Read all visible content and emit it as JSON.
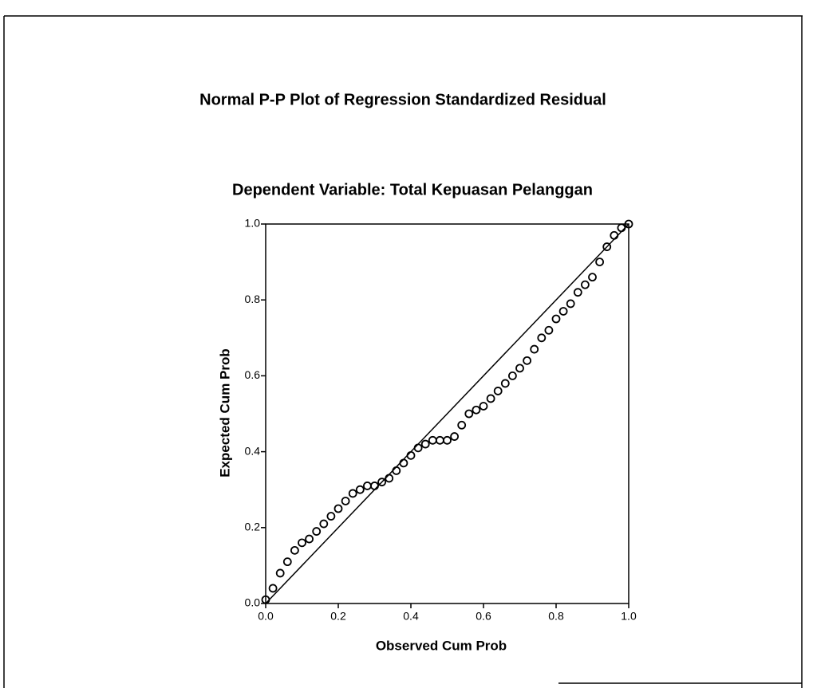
{
  "chart_data": {
    "type": "scatter",
    "title": "Normal P-P Plot of Regression Standardized Residual",
    "subtitle": "Dependent Variable: Total Kepuasan Pelanggan",
    "x_label": "Observed Cum Prob",
    "y_label": "Expected Cum Prob",
    "xlim": [
      0,
      1
    ],
    "ylim": [
      0,
      1
    ],
    "xticks": [
      {
        "value": 0,
        "label": "0.0"
      },
      0.2,
      0.4,
      0.6,
      0.8,
      {
        "value": 1,
        "label": "1.0"
      }
    ],
    "yticks": [
      {
        "value": 0,
        "label": "0.0"
      },
      0.2,
      0.4,
      0.6,
      0.8,
      {
        "value": 1,
        "label": "1.0"
      }
    ],
    "color": "#000000",
    "reference_line": {
      "x": [
        0,
        1
      ],
      "y": [
        0,
        1
      ]
    },
    "x": [
      0.0,
      0.02,
      0.04,
      0.06,
      0.08,
      0.1,
      0.12,
      0.14,
      0.16,
      0.18,
      0.2,
      0.22,
      0.24,
      0.26,
      0.28,
      0.3,
      0.32,
      0.34,
      0.36,
      0.38,
      0.4,
      0.42,
      0.44,
      0.46,
      0.48,
      0.5,
      0.52,
      0.54,
      0.56,
      0.58,
      0.6,
      0.62,
      0.64,
      0.66,
      0.68,
      0.7,
      0.72,
      0.74,
      0.76,
      0.78,
      0.8,
      0.82,
      0.84,
      0.86,
      0.88,
      0.9,
      0.92,
      0.94,
      0.96,
      0.98,
      1.0
    ],
    "values": [
      0.01,
      0.04,
      0.08,
      0.11,
      0.14,
      0.16,
      0.17,
      0.19,
      0.21,
      0.23,
      0.25,
      0.27,
      0.29,
      0.3,
      0.31,
      0.31,
      0.32,
      0.33,
      0.35,
      0.37,
      0.39,
      0.41,
      0.42,
      0.43,
      0.43,
      0.43,
      0.44,
      0.47,
      0.5,
      0.51,
      0.52,
      0.54,
      0.56,
      0.58,
      0.6,
      0.62,
      0.64,
      0.67,
      0.7,
      0.72,
      0.75,
      0.77,
      0.79,
      0.82,
      0.84,
      0.86,
      0.9,
      0.94,
      0.97,
      0.99,
      1.0
    ]
  }
}
